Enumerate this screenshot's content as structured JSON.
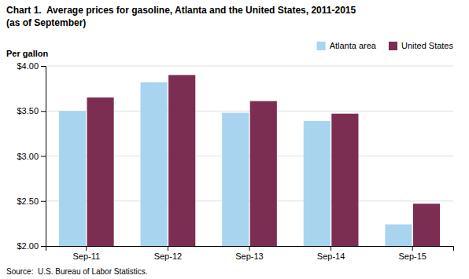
{
  "chart_data": {
    "type": "bar",
    "title": "Chart 1.  Average prices for gasoline, Atlanta and the United States, 2011-2015",
    "subtitle": "(as of September)",
    "y_label": "Per gallon",
    "source": "Source:  U.S. Bureau of Labor Statistics.",
    "categories": [
      "Sep-11",
      "Sep-12",
      "Sep-13",
      "Sep-14",
      "Sep-15"
    ],
    "series": [
      {
        "name": "Atlanta area",
        "color": "#a8d4f0",
        "values": [
          3.5,
          3.82,
          3.48,
          3.39,
          2.24
        ]
      },
      {
        "name": "United States",
        "color": "#7b2d52",
        "values": [
          3.65,
          3.9,
          3.61,
          3.47,
          2.47
        ]
      }
    ],
    "ylim": [
      2.0,
      4.0
    ],
    "yticks": [
      {
        "value": 2.0,
        "label": "$2.00"
      },
      {
        "value": 2.5,
        "label": "$2.50"
      },
      {
        "value": 3.0,
        "label": "$3.00"
      },
      {
        "value": 3.5,
        "label": "$3.50"
      },
      {
        "value": 4.0,
        "label": "$4.00"
      }
    ],
    "grid": true,
    "legend": "upper right"
  }
}
